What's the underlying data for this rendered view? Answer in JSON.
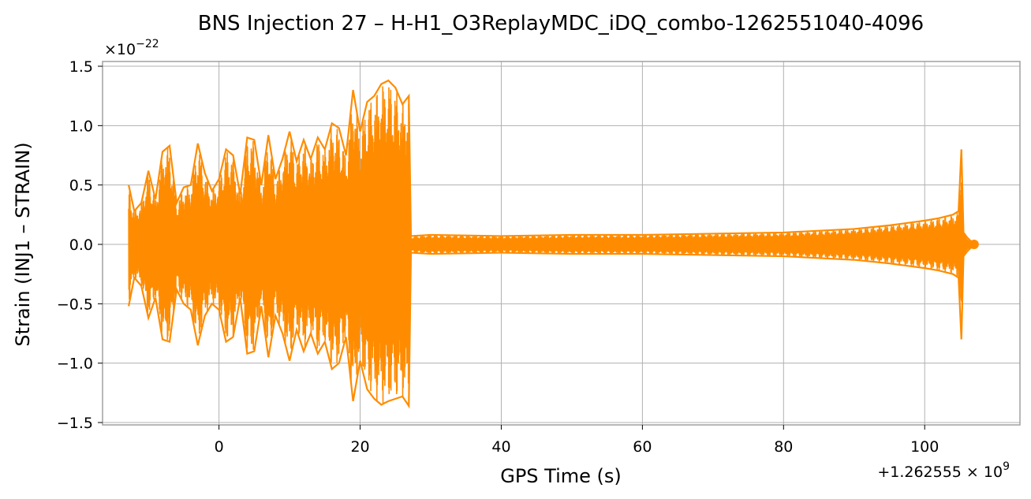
{
  "chart_data": {
    "type": "line",
    "title": "BNS Injection 27 – H-H1_O3ReplayMDC_iDQ_combo-1262551040-4096",
    "xlabel": "GPS Time (s)",
    "ylabel": "Strain (INJ1 – STRAIN)",
    "x_offset_text": "+1.262555 × 10",
    "x_offset_exponent": "9",
    "y_scale_text": "×10",
    "y_scale_exponent": "−22",
    "xlim": [
      -16.5,
      113.5
    ],
    "ylim": [
      -1.52,
      1.54
    ],
    "x_ticks": [
      0,
      20,
      40,
      60,
      80,
      100
    ],
    "x_tick_labels": [
      "0",
      "20",
      "40",
      "60",
      "80",
      "100"
    ],
    "y_ticks": [
      -1.5,
      -1.0,
      -0.5,
      0.0,
      0.5,
      1.0,
      1.5
    ],
    "y_tick_labels": [
      "−1.5",
      "−1.0",
      "−0.5",
      "0.0",
      "0.5",
      "1.0",
      "1.5"
    ],
    "grid": true,
    "series": [
      {
        "color": "#ff8c00",
        "envelope": {
          "x": [
            -12.8,
            -12.0,
            -11.0,
            -10.0,
            -9.0,
            -8.0,
            -7.0,
            -6.0,
            -5.0,
            -4.0,
            -3.0,
            -2.0,
            -1.0,
            0.0,
            1.0,
            2.0,
            3.0,
            4.0,
            5.0,
            6.0,
            7.0,
            8.0,
            9.0,
            10.0,
            11.0,
            12.0,
            13.0,
            14.0,
            15.0,
            16.0,
            17.0,
            18.0,
            19.0,
            20.0,
            21.0,
            22.0,
            23.0,
            24.0,
            25.0,
            26.0,
            26.9,
            27.2,
            30.0,
            40.0,
            50.0,
            60.0,
            70.0,
            80.0,
            90.0,
            95.0,
            100.0,
            102.0,
            104.0,
            104.8,
            105.2,
            105.5,
            106.0,
            106.5,
            107.0
          ],
          "upper": [
            0.5,
            0.28,
            0.35,
            0.62,
            0.38,
            0.78,
            0.83,
            0.35,
            0.48,
            0.5,
            0.85,
            0.6,
            0.45,
            0.55,
            0.8,
            0.75,
            0.42,
            0.9,
            0.88,
            0.5,
            0.92,
            0.55,
            0.72,
            0.95,
            0.7,
            0.88,
            0.72,
            0.9,
            0.8,
            1.02,
            0.98,
            0.75,
            1.3,
            0.95,
            1.2,
            1.25,
            1.35,
            1.38,
            1.32,
            1.18,
            1.25,
            0.07,
            0.08,
            0.07,
            0.08,
            0.08,
            0.09,
            0.1,
            0.13,
            0.16,
            0.2,
            0.22,
            0.25,
            0.28,
            0.8,
            0.1,
            0.06,
            0.03,
            0.02
          ],
          "lower": [
            -0.52,
            -0.28,
            -0.35,
            -0.62,
            -0.45,
            -0.8,
            -0.82,
            -0.38,
            -0.5,
            -0.55,
            -0.85,
            -0.6,
            -0.5,
            -0.55,
            -0.82,
            -0.78,
            -0.45,
            -0.92,
            -0.9,
            -0.52,
            -0.95,
            -0.6,
            -0.75,
            -0.98,
            -0.72,
            -0.9,
            -0.75,
            -0.92,
            -0.82,
            -1.05,
            -1.0,
            -0.78,
            -1.32,
            -0.98,
            -1.22,
            -1.3,
            -1.35,
            -1.32,
            -1.3,
            -1.28,
            -1.36,
            -0.07,
            -0.08,
            -0.07,
            -0.08,
            -0.08,
            -0.09,
            -0.1,
            -0.13,
            -0.16,
            -0.2,
            -0.22,
            -0.25,
            -0.28,
            -0.8,
            -0.1,
            -0.06,
            -0.03,
            -0.02
          ]
        }
      }
    ]
  }
}
